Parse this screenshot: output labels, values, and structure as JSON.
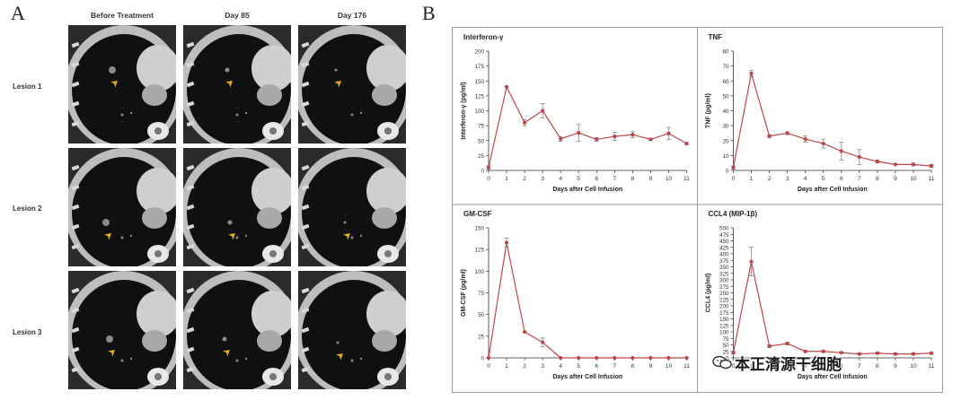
{
  "figure": {
    "panel_a_label": "A",
    "panel_b_label": "B",
    "watermark_text": "本正清源干细胞",
    "watermark_icon": "wechat-icon"
  },
  "panel_a": {
    "columns": [
      "Before Treatment",
      "Day 85",
      "Day 176"
    ],
    "rows": [
      "Lesion 1",
      "Lesion 2",
      "Lesion 3"
    ],
    "arrow_color": "#e0b020"
  },
  "chart_data": [
    {
      "type": "line",
      "title": "Interferon-γ",
      "xlabel": "Days after Cell Infusion",
      "ylabel": "Interferon-γ (pg/ml)",
      "x": [
        0,
        1,
        2,
        3,
        4,
        5,
        6,
        7,
        8,
        9,
        10,
        11
      ],
      "values": [
        5,
        140,
        80,
        100,
        53,
        63,
        52,
        57,
        60,
        52,
        62,
        45
      ],
      "errors": [
        3,
        0,
        5,
        12,
        4,
        14,
        3,
        7,
        5,
        2,
        10,
        2
      ],
      "xticks": [
        "0",
        "1",
        "2",
        "3",
        "4",
        "5",
        "6",
        "7",
        "8",
        "9",
        "10",
        "11"
      ],
      "yticks": [
        "0",
        "25",
        "50",
        "75",
        "100",
        "125",
        "150",
        "175",
        "200"
      ],
      "xlim": [
        0,
        11
      ],
      "ylim": [
        0,
        200
      ],
      "color": "#c0454a"
    },
    {
      "type": "line",
      "title": "TNF",
      "xlabel": "Days after Cell Infusion",
      "ylabel": "TNF (pg/ml)",
      "x": [
        0,
        1,
        2,
        3,
        4,
        5,
        6,
        7,
        8,
        9,
        10,
        11
      ],
      "values": [
        2,
        65,
        23,
        25,
        21,
        18,
        13,
        9,
        6,
        4,
        4,
        3
      ],
      "errors": [
        1,
        2,
        1,
        1,
        2,
        3,
        6,
        5,
        1,
        0,
        1,
        1
      ],
      "xticks": [
        "0",
        "1",
        "2",
        "3",
        "4",
        "5",
        "6",
        "7",
        "8",
        "9",
        "10",
        "11"
      ],
      "yticks": [
        "0",
        "10",
        "20",
        "30",
        "40",
        "50",
        "60",
        "70",
        "80"
      ],
      "xlim": [
        0,
        11
      ],
      "ylim": [
        0,
        80
      ],
      "color": "#c0454a"
    },
    {
      "type": "line",
      "title": "GM-CSF",
      "xlabel": "Days after Cell Infusion",
      "ylabel": "GM-CSF (pg/ml)",
      "x": [
        0,
        1,
        2,
        3,
        4,
        5,
        6,
        7,
        8,
        9,
        10,
        11
      ],
      "values": [
        0,
        133,
        30,
        18,
        0,
        0,
        0,
        0,
        0,
        0,
        0,
        0
      ],
      "errors": [
        0,
        5,
        0,
        5,
        0,
        0,
        0,
        0,
        0,
        0,
        0,
        0
      ],
      "xticks": [
        "0",
        "1",
        "2",
        "3",
        "4",
        "5",
        "6",
        "7",
        "8",
        "9",
        "10",
        "11"
      ],
      "yticks": [
        "0",
        "25",
        "50",
        "75",
        "100",
        "125",
        "150"
      ],
      "xlim": [
        0,
        11
      ],
      "ylim": [
        0,
        150
      ],
      "color": "#c0454a"
    },
    {
      "type": "line",
      "title": "CCL4 (MIP-1β)",
      "xlabel": "Days after Cell Infusion",
      "ylabel": "CCL4 (pg/ml)",
      "x": [
        0,
        1,
        2,
        3,
        4,
        5,
        6,
        7,
        8,
        9,
        10,
        11
      ],
      "values": [
        20,
        370,
        45,
        55,
        25,
        25,
        20,
        15,
        18,
        15,
        15,
        18
      ],
      "errors": [
        5,
        55,
        5,
        5,
        3,
        3,
        3,
        3,
        3,
        3,
        3,
        3
      ],
      "xticks": [
        "0",
        "1",
        "2",
        "3",
        "4",
        "5",
        "6",
        "7",
        "8",
        "9",
        "10",
        "11"
      ],
      "yticks": [
        "0",
        "25",
        "50",
        "75",
        "100",
        "125",
        "150",
        "175",
        "200",
        "225",
        "250",
        "275",
        "300",
        "325",
        "350",
        "375",
        "400",
        "425",
        "450",
        "475",
        "500"
      ],
      "xlim": [
        0,
        11
      ],
      "ylim": [
        0,
        500
      ],
      "color": "#c0454a"
    }
  ]
}
